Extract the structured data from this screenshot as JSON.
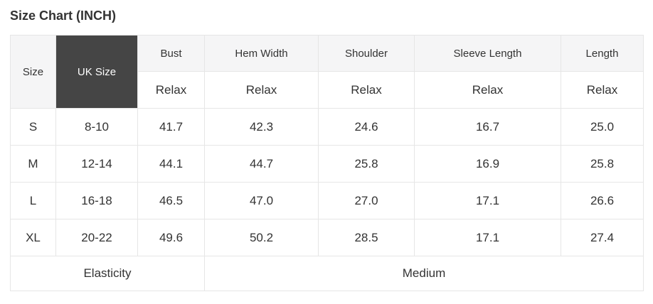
{
  "title": "Size Chart (INCH)",
  "chart_data": {
    "type": "table",
    "title": "Size Chart (INCH)",
    "unit": "INCH",
    "header": {
      "size": "Size",
      "uk_size": "UK Size",
      "measures": [
        "Bust",
        "Hem Width",
        "Shoulder",
        "Sleeve Length",
        "Length"
      ],
      "fit": [
        "Relax",
        "Relax",
        "Relax",
        "Relax",
        "Relax"
      ]
    },
    "rows": [
      {
        "size": "S",
        "uk_size": "8-10",
        "values": [
          "41.7",
          "42.3",
          "24.6",
          "16.7",
          "25.0"
        ]
      },
      {
        "size": "M",
        "uk_size": "12-14",
        "values": [
          "44.1",
          "44.7",
          "25.8",
          "16.9",
          "25.8"
        ]
      },
      {
        "size": "L",
        "uk_size": "16-18",
        "values": [
          "46.5",
          "47.0",
          "27.0",
          "17.1",
          "26.6"
        ]
      },
      {
        "size": "XL",
        "uk_size": "20-22",
        "values": [
          "49.6",
          "50.2",
          "28.5",
          "17.1",
          "27.4"
        ]
      }
    ],
    "footer": {
      "label": "Elasticity",
      "value": "Medium"
    }
  },
  "colors": {
    "uk_header_bg": "#454545",
    "uk_header_text": "#ffffff",
    "header_bg": "#f5f5f6",
    "border": "#e6e6e6",
    "text": "#333333"
  }
}
